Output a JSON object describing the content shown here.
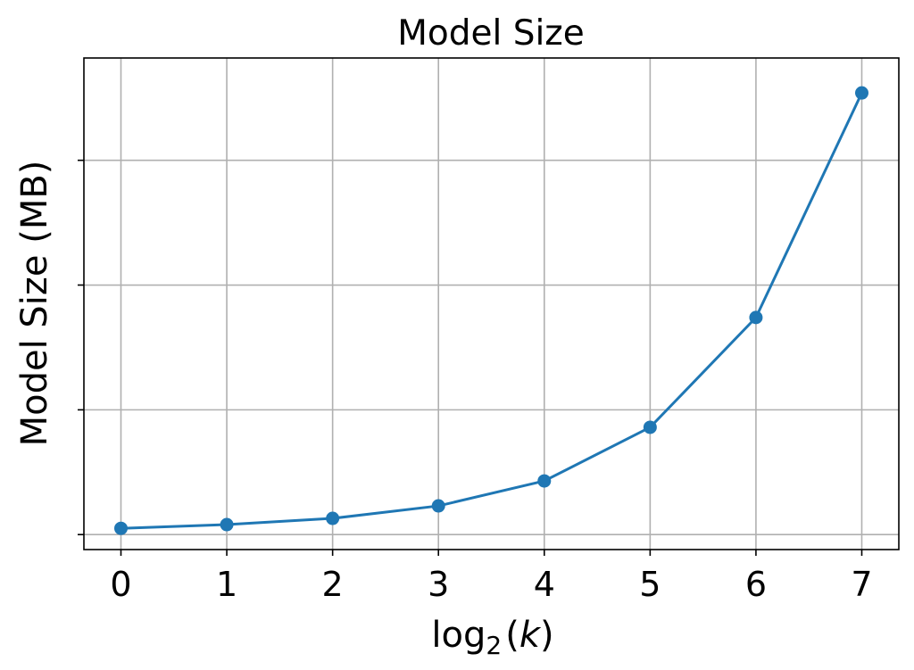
{
  "chart_data": {
    "type": "line",
    "title": "Model Size",
    "xlabel": {
      "base": "log",
      "subscript": "2",
      "open": "(",
      "var": "k",
      "close": ")"
    },
    "ylabel": "Model Size (MB)",
    "x": [
      0,
      1,
      2,
      3,
      4,
      5,
      6,
      7
    ],
    "x_tick_labels": [
      "0",
      "1",
      "2",
      "3",
      "4",
      "5",
      "6",
      "7"
    ],
    "xlim": [
      -0.35,
      7.35
    ],
    "ylim": [
      -0.12,
      3.82
    ],
    "y_ticks": [
      0,
      1,
      2,
      3
    ],
    "y_tick_labels_visible": false,
    "grid": true,
    "series": [
      {
        "values": [
          0.05,
          0.08,
          0.13,
          0.23,
          0.43,
          0.86,
          1.74,
          3.54
        ],
        "color": "#1f77b4",
        "marker": "circle"
      }
    ]
  }
}
